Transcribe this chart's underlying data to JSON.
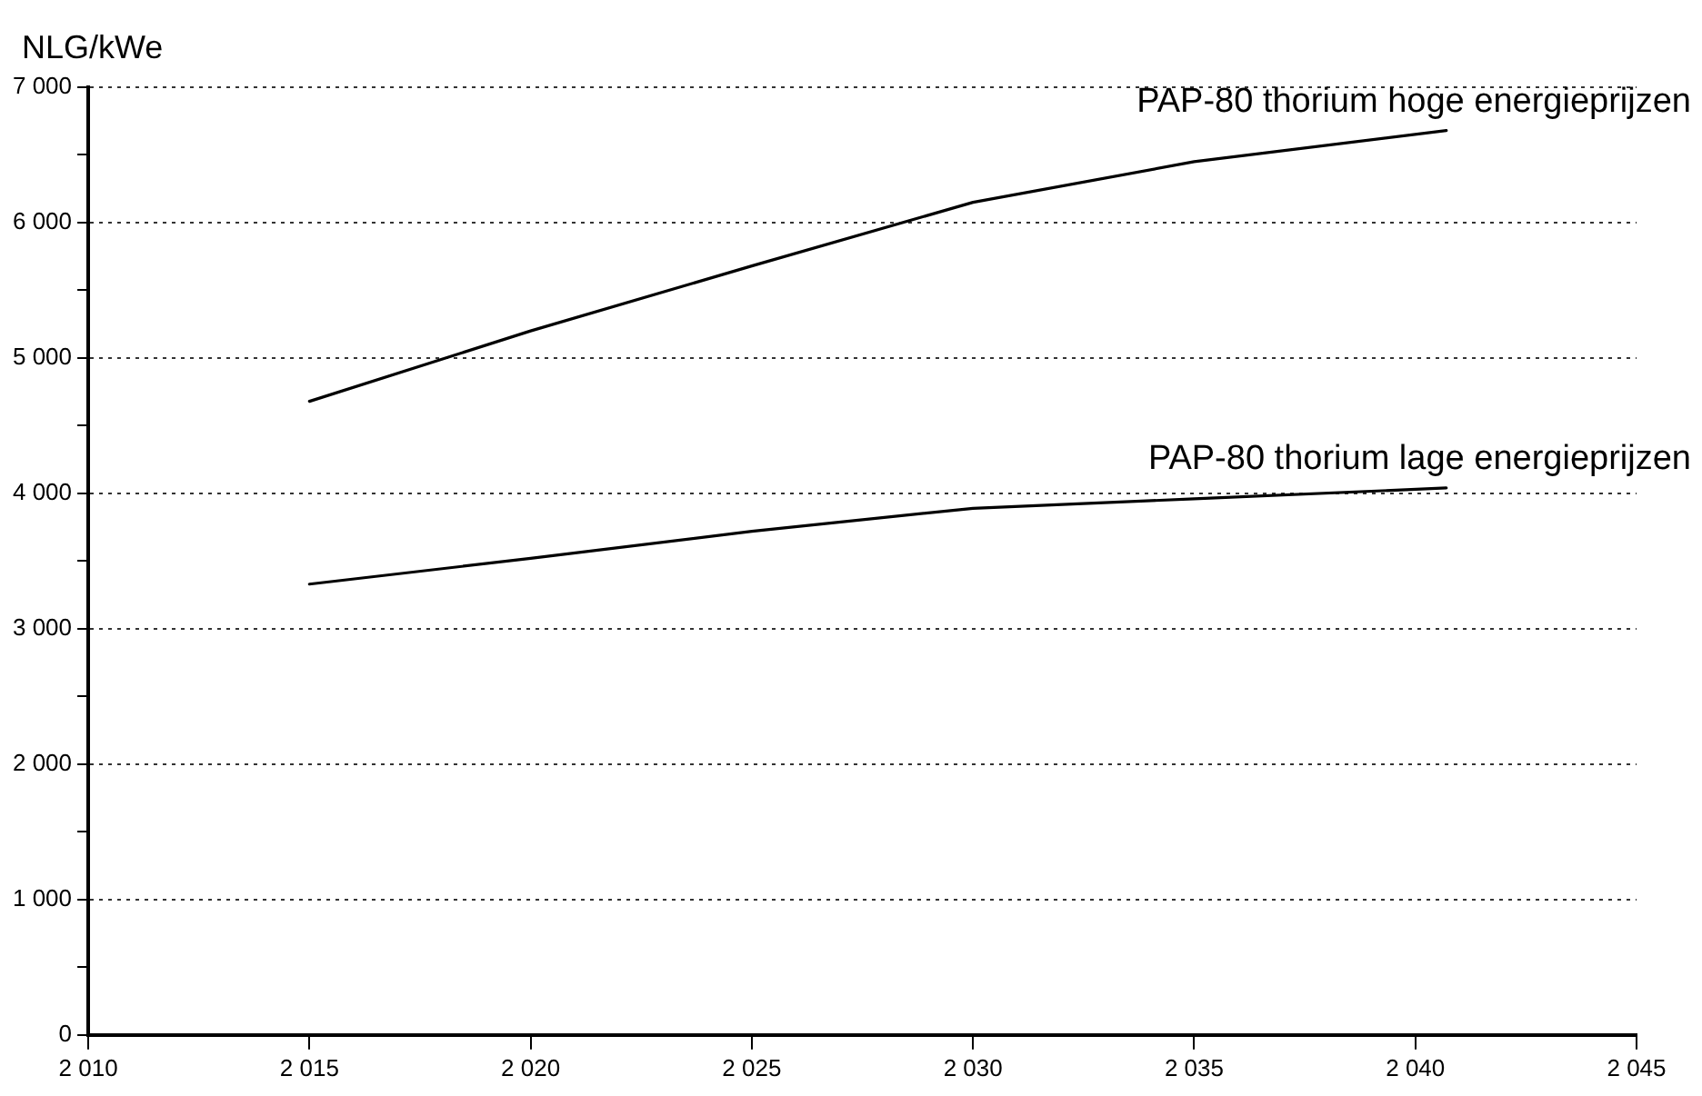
{
  "chart_data": {
    "type": "line",
    "ylabel": "NLG/kWe",
    "x": [
      2015,
      2020,
      2025,
      2030,
      2035,
      2040.7
    ],
    "series": [
      {
        "name": "PAP-80 thorium hoge energieprijzen",
        "color": "#000000",
        "values": [
          4680,
          5200,
          5680,
          6150,
          6450,
          6680
        ]
      },
      {
        "name": "PAP-80 thorium lage energieprijzen",
        "color": "#000000",
        "values": [
          3330,
          3520,
          3720,
          3890,
          3960,
          4040
        ]
      }
    ],
    "xlim": [
      2010,
      2045
    ],
    "xticks": [
      {
        "value": 2010,
        "label": "2 010"
      },
      {
        "value": 2015,
        "label": "2 015"
      },
      {
        "value": 2020,
        "label": "2 020"
      },
      {
        "value": 2025,
        "label": "2 025"
      },
      {
        "value": 2030,
        "label": "2 030"
      },
      {
        "value": 2035,
        "label": "2 035"
      },
      {
        "value": 2040,
        "label": "2 040"
      },
      {
        "value": 2045,
        "label": "2 045"
      }
    ],
    "ylim": [
      0,
      7000
    ],
    "yticks": [
      {
        "value": 0,
        "label": "0"
      },
      {
        "value": 500,
        "label": null
      },
      {
        "value": 1000,
        "label": "1 000"
      },
      {
        "value": 1500,
        "label": null
      },
      {
        "value": 2000,
        "label": "2 000"
      },
      {
        "value": 2500,
        "label": null
      },
      {
        "value": 3000,
        "label": "3 000"
      },
      {
        "value": 3500,
        "label": null
      },
      {
        "value": 4000,
        "label": "4 000"
      },
      {
        "value": 4500,
        "label": null
      },
      {
        "value": 5000,
        "label": "5 000"
      },
      {
        "value": 5500,
        "label": null
      },
      {
        "value": 6000,
        "label": "6 000"
      },
      {
        "value": 6500,
        "label": null
      },
      {
        "value": 7000,
        "label": "7 000"
      }
    ],
    "grid": "y",
    "marker": "none",
    "line_style": "solid",
    "legend": false
  }
}
